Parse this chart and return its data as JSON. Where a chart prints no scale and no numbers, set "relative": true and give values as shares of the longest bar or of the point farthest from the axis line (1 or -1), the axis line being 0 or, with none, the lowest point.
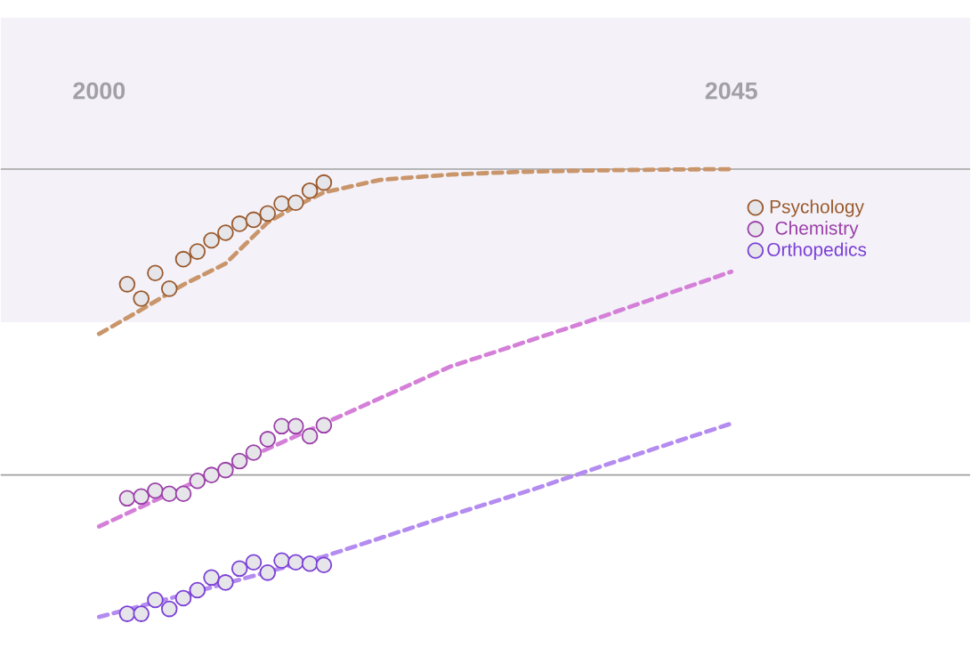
{
  "chart_data": {
    "type": "scatter",
    "relative": true,
    "xlim": [
      1993,
      2062
    ],
    "xticks": [
      2000,
      2045
    ],
    "legend": "right",
    "series": [
      {
        "name": "Psychology",
        "type": "scatter",
        "color": "#9a5a2e",
        "marker": "circle",
        "x": [
          2002,
          2003,
          2004,
          2005,
          2006,
          2007,
          2008,
          2009,
          2010,
          2011,
          2012,
          2013,
          2014,
          2015,
          2016
        ],
        "values": [
          0.743,
          0.711,
          0.768,
          0.733,
          0.799,
          0.816,
          0.841,
          0.858,
          0.878,
          0.887,
          0.901,
          0.923,
          0.925,
          0.952,
          0.97
        ]
      },
      {
        "name": "Chemistry",
        "type": "scatter",
        "color": "#9b3fa8",
        "marker": "circle",
        "x": [
          2002,
          2003,
          2004,
          2005,
          2006,
          2007,
          2008,
          2009,
          2010,
          2011,
          2012,
          2013,
          2014,
          2015,
          2016
        ],
        "values": [
          0.265,
          0.269,
          0.282,
          0.275,
          0.275,
          0.304,
          0.317,
          0.328,
          0.348,
          0.367,
          0.397,
          0.426,
          0.426,
          0.404,
          0.428
        ]
      },
      {
        "name": "Orthopedics",
        "type": "scatter",
        "color": "#7a3fd6",
        "marker": "circle",
        "x": [
          2002,
          2003,
          2004,
          2005,
          2006,
          2007,
          2008,
          2009,
          2010,
          2011,
          2012,
          2013,
          2014,
          2015,
          2016
        ],
        "values": [
          0.007,
          0.007,
          0.038,
          0.018,
          0.042,
          0.06,
          0.088,
          0.077,
          0.108,
          0.122,
          0.099,
          0.126,
          0.122,
          0.119,
          0.116
        ]
      },
      {
        "type": "line",
        "color": "#c9956b",
        "line_style": "dashed",
        "marker": "none",
        "x": [
          2000,
          2003,
          2006,
          2009,
          2012,
          2014,
          2016,
          2020,
          2025,
          2030,
          2035,
          2040,
          2045
        ],
        "values": [
          0.632,
          0.686,
          0.742,
          0.789,
          0.881,
          0.917,
          0.948,
          0.976,
          0.988,
          0.994,
          0.997,
          0.999,
          1.0
        ]
      },
      {
        "type": "line",
        "color": "#d580d8",
        "line_style": "dashed",
        "marker": "none",
        "x": [
          2000,
          2008,
          2016,
          2025,
          2035,
          2045
        ],
        "values": [
          0.202,
          0.319,
          0.432,
          0.559,
          0.662,
          0.771
        ]
      },
      {
        "type": "line",
        "color": "#b48cf0",
        "line_style": "dashed",
        "marker": "none",
        "x": [
          2000,
          2008,
          2016,
          2024,
          2031,
          2038,
          2045
        ],
        "values": [
          0.0,
          0.066,
          0.135,
          0.217,
          0.286,
          0.36,
          0.432
        ]
      }
    ],
    "ref_lines": [
      {
        "axis": "y",
        "value": 1.0,
        "color": "#a0a0a0"
      },
      {
        "axis": "y",
        "value": 0.317,
        "color": "#a0a0a0"
      }
    ],
    "bands": [
      {
        "axis": "y",
        "from": 0.658,
        "to": 1.338,
        "color": "#f4f2f8"
      }
    ]
  }
}
